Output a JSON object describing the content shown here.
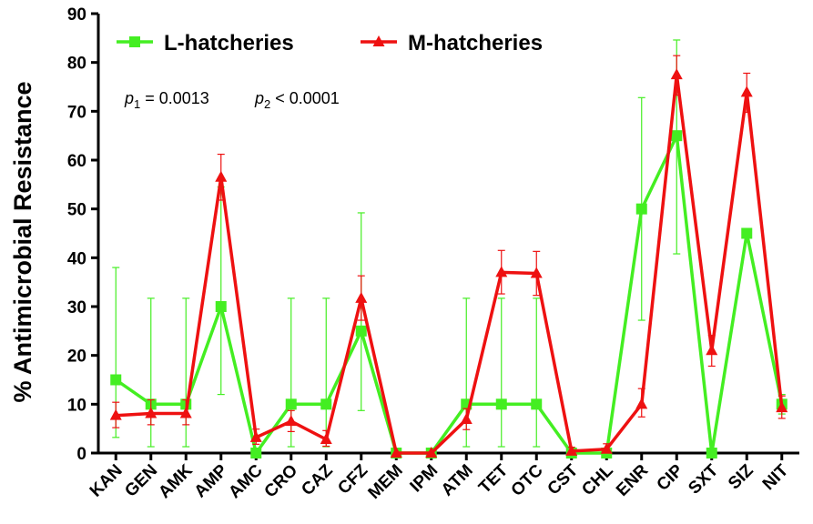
{
  "chart_data": {
    "type": "line",
    "ylabel": "% Antimicrobial Resistance",
    "ylim": [
      0,
      90
    ],
    "yticks": [
      0,
      10,
      20,
      30,
      40,
      50,
      60,
      70,
      80,
      90
    ],
    "categories": [
      "KAN",
      "GEN",
      "AMK",
      "AMP",
      "AMC",
      "CRO",
      "CAZ",
      "CFZ",
      "MEM",
      "IPM",
      "ATM",
      "TET",
      "OTC",
      "CST",
      "CHL",
      "ENR",
      "CIP",
      "SXT",
      "SIZ",
      "NIT"
    ],
    "legend_position": "top-left",
    "grid": false,
    "series": [
      {
        "name": "L-hatcheries",
        "color": "#44ee22",
        "marker": "square",
        "values": [
          15,
          10,
          10,
          30,
          0,
          10,
          10,
          25,
          0,
          0,
          10,
          10,
          10,
          0,
          0,
          50,
          65,
          0,
          45,
          10
        ],
        "err_upper": [
          38,
          31.7,
          31.7,
          54.5,
          null,
          31.7,
          31.7,
          49.2,
          null,
          null,
          31.7,
          31.7,
          31.7,
          null,
          null,
          72.8,
          84.6,
          null,
          null,
          12
        ],
        "err_lower": [
          3.2,
          1.3,
          1.3,
          12,
          null,
          1.3,
          1.3,
          8.7,
          null,
          null,
          1.3,
          1.3,
          1.3,
          null,
          null,
          27.2,
          40.8,
          null,
          null,
          8
        ]
      },
      {
        "name": "M-hatcheries",
        "color": "#ee1111",
        "marker": "triangle",
        "values": [
          7.7,
          8.1,
          8.1,
          56.5,
          3.2,
          6.5,
          2.8,
          31.7,
          0,
          0,
          6.9,
          37,
          36.8,
          0.4,
          0.8,
          10,
          77.5,
          21,
          73.9,
          9.3
        ],
        "err_upper": [
          10.4,
          10.9,
          10.9,
          61.2,
          4.9,
          8.7,
          4.6,
          36.3,
          null,
          null,
          9.1,
          41.5,
          41.3,
          1.2,
          1.9,
          13.2,
          81.4,
          24.1,
          77.8,
          11.7
        ],
        "err_lower": [
          5.2,
          5.8,
          5.8,
          51.8,
          1.8,
          4.4,
          1.4,
          27.2,
          null,
          null,
          4.8,
          32.6,
          32.3,
          0,
          0.1,
          7.4,
          73.3,
          17.8,
          69.8,
          7.1
        ]
      }
    ],
    "annotation": {
      "p1_label": "p",
      "p1_sub": "1",
      "p1_value": " = 0.0013",
      "p2_label": "p",
      "p2_sub": "2",
      "p2_value": " < 0.0001"
    }
  }
}
